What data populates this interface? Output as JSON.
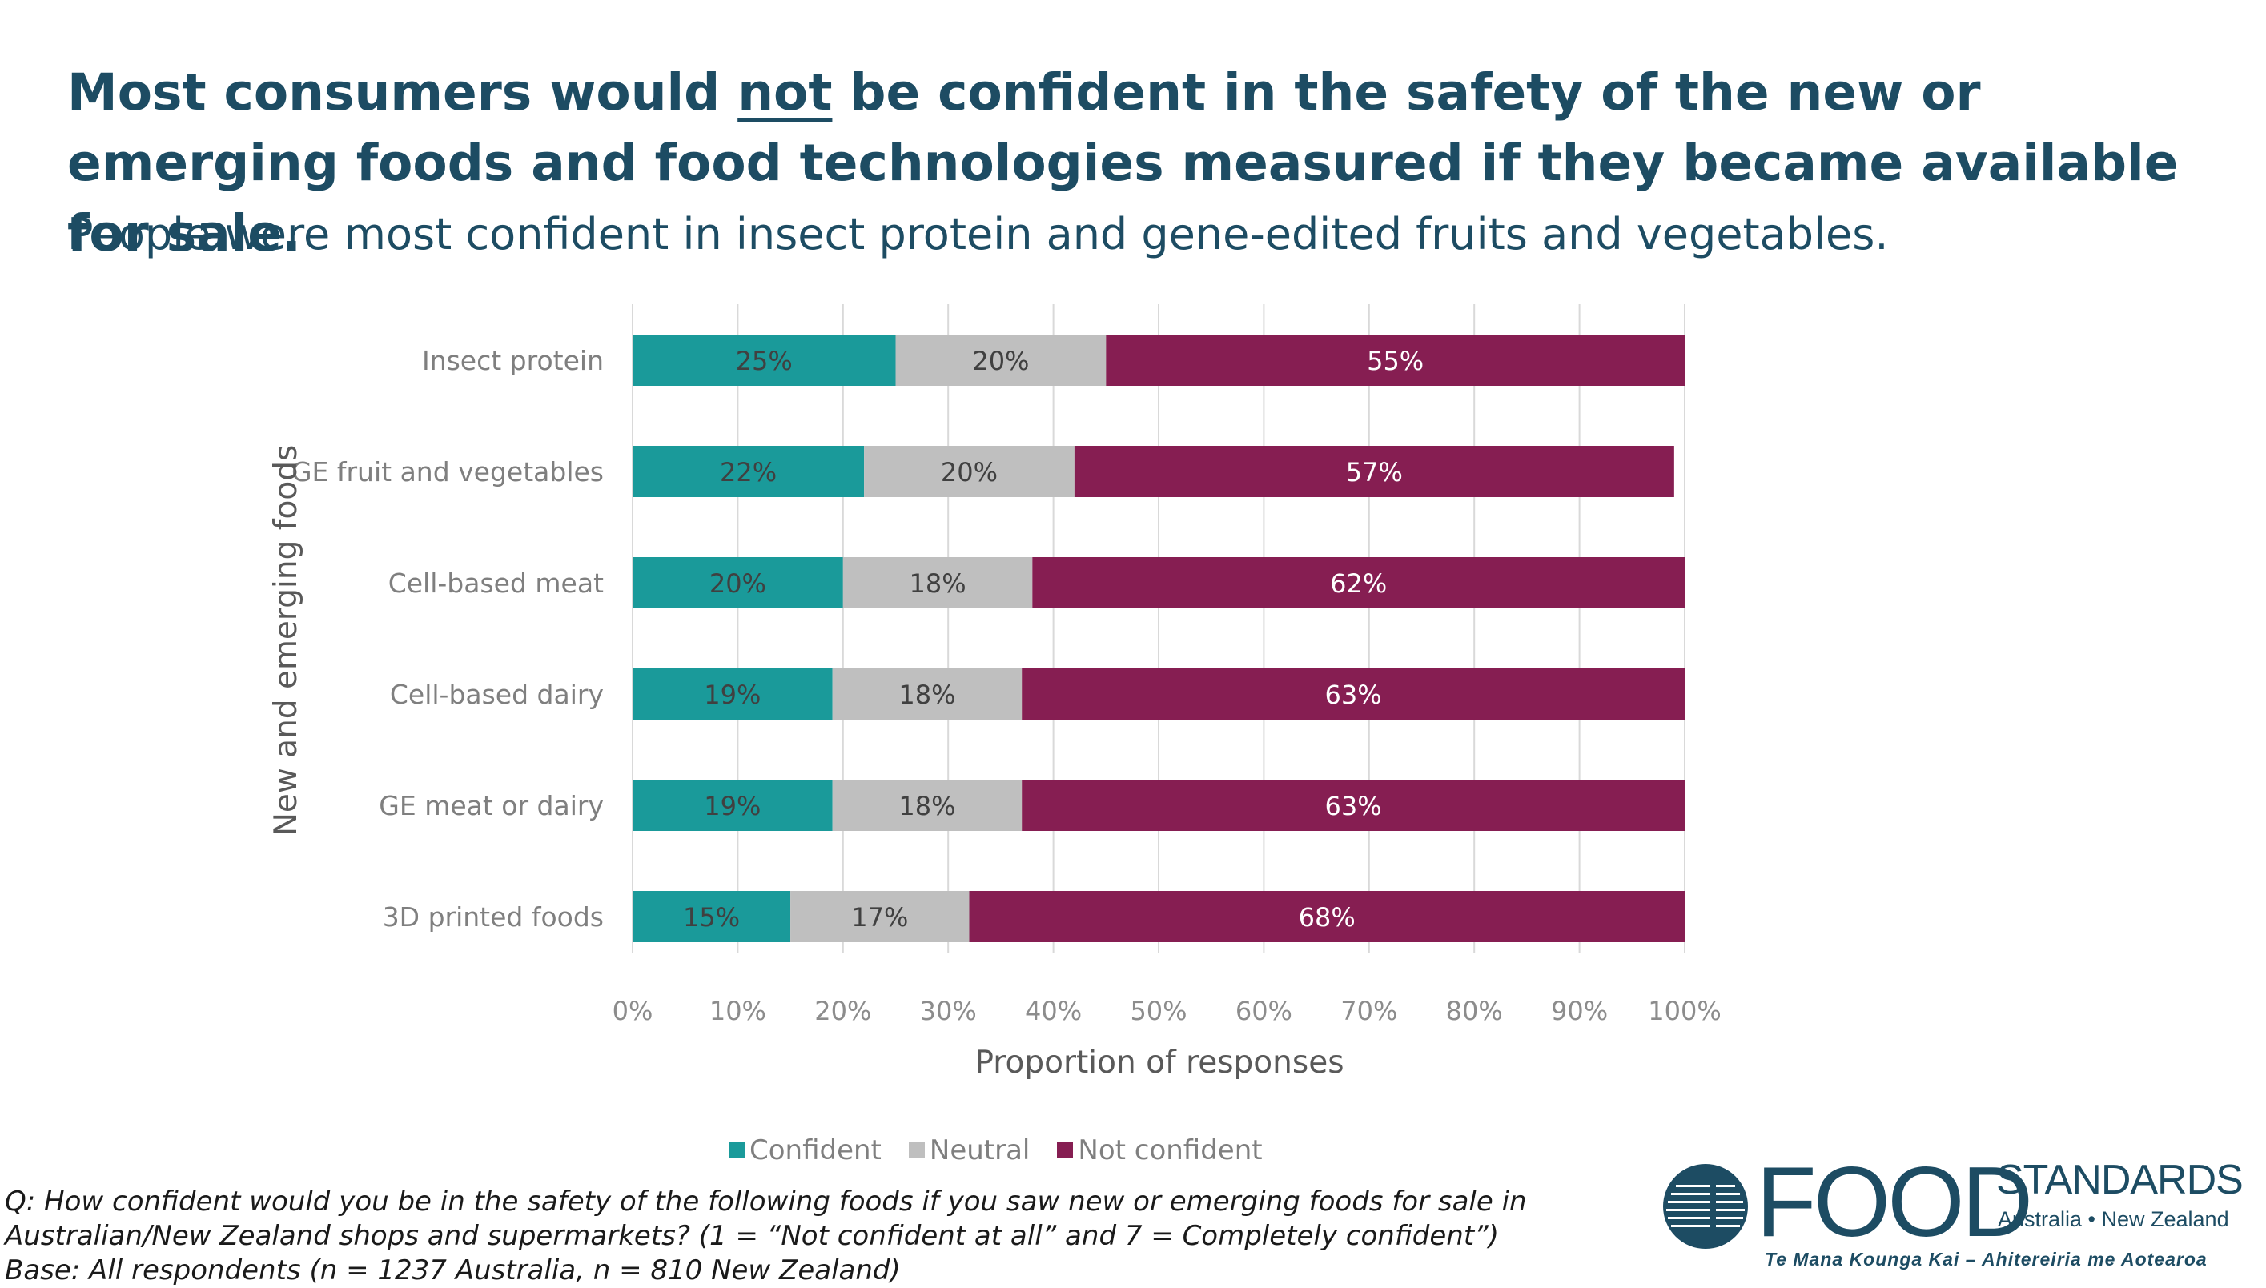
{
  "header": {
    "title_before": "Most consumers would ",
    "title_emphasis": "not",
    "title_after": " be confident in the safety of the new or emerging foods and food technologies measured if they became available for sale.",
    "subtitle": "People were most confident in insect protein and gene-edited fruits and vegetables."
  },
  "chart_data": {
    "type": "bar",
    "orientation": "horizontal",
    "stacked": true,
    "title": "",
    "xlabel": "Proportion of responses",
    "ylabel": "New and emerging foods",
    "xlim": [
      0,
      100
    ],
    "xticks": [
      "0%",
      "10%",
      "20%",
      "30%",
      "40%",
      "50%",
      "60%",
      "70%",
      "80%",
      "90%",
      "100%"
    ],
    "grid": "vertical",
    "legend_position": "bottom",
    "categories": [
      "Insect protein",
      "GE fruit and vegetables",
      "Cell-based meat",
      "Cell-based dairy",
      "GE meat or dairy",
      "3D printed foods"
    ],
    "series": [
      {
        "name": "Confident",
        "color": "#1a9a9a",
        "values": [
          25,
          22,
          20,
          19,
          19,
          15
        ]
      },
      {
        "name": "Neutral",
        "color": "#bfbfbf",
        "values": [
          20,
          20,
          18,
          18,
          18,
          17
        ]
      },
      {
        "name": "Not confident",
        "color": "#861e52",
        "values": [
          55,
          57,
          62,
          63,
          63,
          68
        ]
      }
    ]
  },
  "footnote": {
    "question_line1": "Q: How confident would you be in the safety of the following foods if you saw new or emerging foods for sale in",
    "question_line2": "Australian/New Zealand shops and supermarkets? (1 = “Not confident at all” and 7 = Completely confident”)",
    "base": "Base: All respondents (n = 1237 Australia, n = 810 New Zealand)"
  },
  "logo": {
    "word1": "FOOD",
    "word2": "STANDARDS",
    "region": "Australia • New Zealand",
    "tagline": "Te Mana Kounga Kai – Ahitereiria me Aotearoa",
    "color": "#1d4c63"
  }
}
